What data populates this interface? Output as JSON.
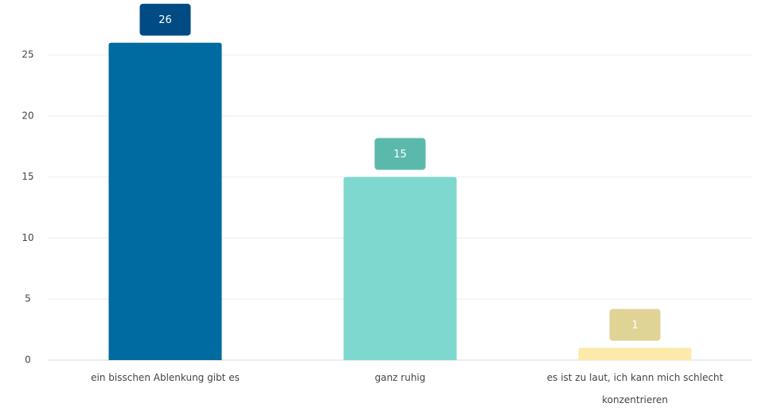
{
  "chart_data": {
    "type": "bar",
    "categories": [
      "ein bisschen Ablenkung gibt es",
      "ganz ruhig",
      "es ist zu laut, ich kann mich schlecht konzentrieren"
    ],
    "values": [
      26,
      15,
      1
    ],
    "colors": [
      "#006ba1",
      "#7fd8cf",
      "#fdeaa8"
    ],
    "label_colors": [
      "#004b83",
      "#5bb9ac",
      "#e0d396"
    ],
    "ylim": [
      0,
      28
    ],
    "yticks": [
      0,
      5,
      10,
      15,
      20,
      25
    ],
    "grid": true
  }
}
